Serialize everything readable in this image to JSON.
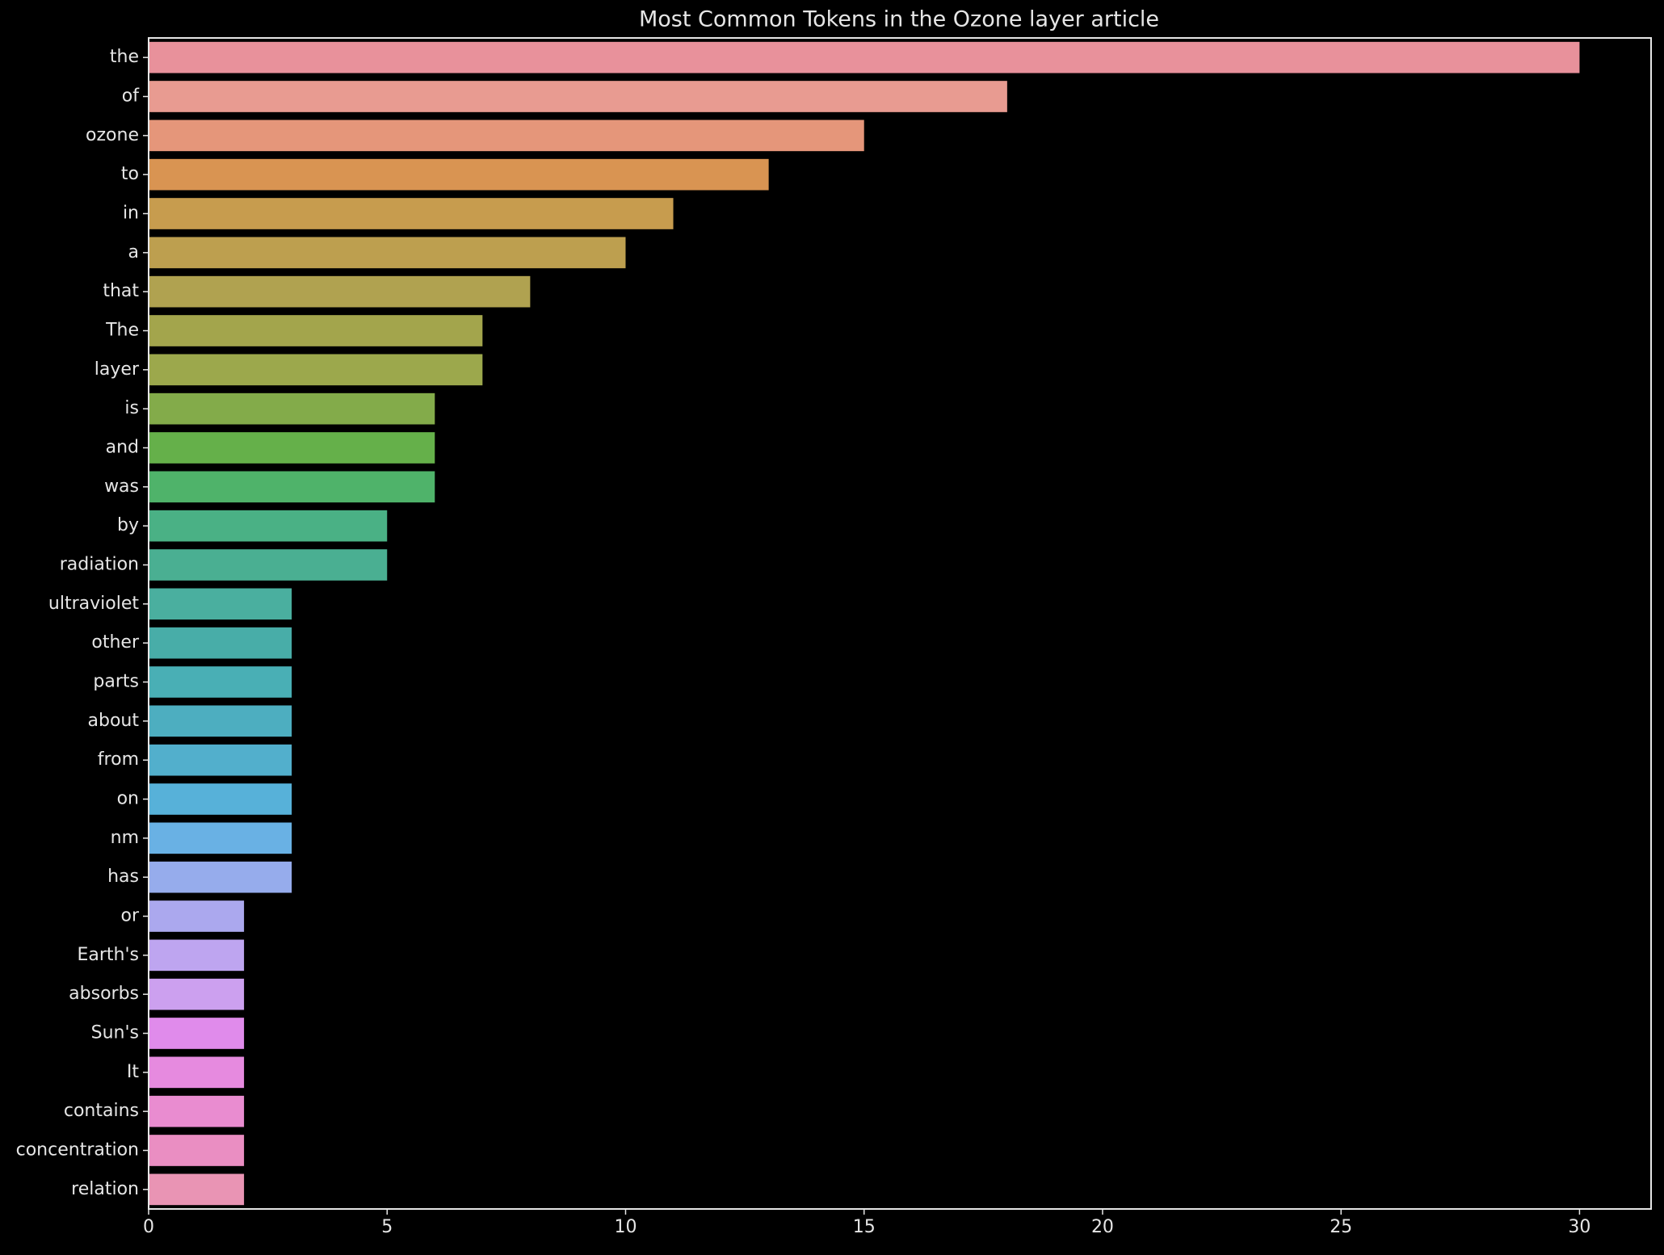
{
  "chart_data": {
    "type": "bar",
    "orientation": "horizontal",
    "title": "Most Common Tokens in the Ozone layer article",
    "xlabel": "",
    "ylabel": "",
    "xlim": [
      0,
      31.5
    ],
    "xticks": [
      0,
      5,
      10,
      15,
      20,
      25,
      30
    ],
    "grid": false,
    "categories": [
      "the",
      "of",
      "ozone",
      "to",
      "in",
      "a",
      "that",
      "The",
      "layer",
      "is",
      "and",
      "was",
      "by",
      "radiation",
      "ultraviolet",
      "other",
      "parts",
      "about",
      "from",
      "on",
      "nm",
      "has",
      "or",
      "Earth's",
      "absorbs",
      "Sun's",
      "It",
      "contains",
      "concentration",
      "relation"
    ],
    "values": [
      30,
      18,
      15,
      13,
      11,
      10,
      8,
      7,
      7,
      6,
      6,
      6,
      5,
      5,
      3,
      3,
      3,
      3,
      3,
      3,
      3,
      3,
      2,
      2,
      2,
      2,
      2,
      2,
      2,
      2
    ],
    "colors": [
      "#e8919b",
      "#e89b91",
      "#e5967a",
      "#d99452",
      "#c79c4e",
      "#bd9f4f",
      "#b0a250",
      "#a3a54c",
      "#9ca84c",
      "#83ab4a",
      "#65b04a",
      "#4fb36a",
      "#4ab185",
      "#4aaf92",
      "#4aaf9f",
      "#48ada8",
      "#49afb5",
      "#4daec0",
      "#52afcc",
      "#57b1d9",
      "#69b1e4",
      "#96acec",
      "#aba8ee",
      "#bea5f0",
      "#cca0ef",
      "#e08beb",
      "#e68adf",
      "#e98cd0",
      "#ea8ec2",
      "#e994b4"
    ],
    "background": "#000000",
    "text_color": "#e6e6e6"
  }
}
